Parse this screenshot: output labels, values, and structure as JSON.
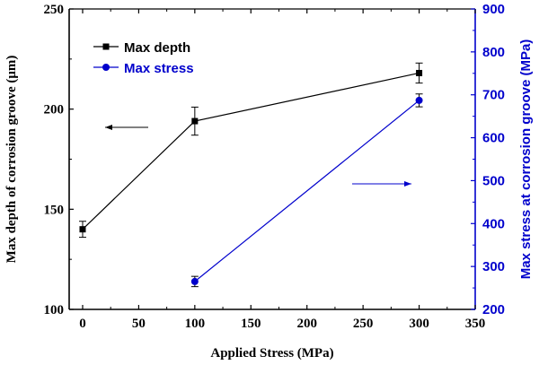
{
  "chart_data": {
    "type": "line",
    "xlabel": "Applied Stress (MPa)",
    "ylabel_left": "Max depth of corrosion groove (μm)",
    "ylabel_right": "Max stress at corrosion groove (MPa)",
    "xlim": [
      -12,
      350
    ],
    "ylim_left": [
      100,
      250
    ],
    "ylim_right": [
      200,
      900
    ],
    "x_ticks": [
      0,
      50,
      100,
      150,
      200,
      250,
      300,
      350
    ],
    "y_left_ticks": [
      100,
      150,
      200,
      250
    ],
    "y_right_ticks": [
      200,
      300,
      400,
      500,
      600,
      700,
      800,
      900
    ],
    "grid": false,
    "legend_position": "top-left",
    "series": [
      {
        "name": "Max depth",
        "axis": "left",
        "color": "#000000",
        "marker": "square",
        "x": [
          0,
          100,
          300
        ],
        "y": [
          140,
          194,
          218
        ],
        "error": [
          4,
          7,
          5
        ]
      },
      {
        "name": "Max stress",
        "axis": "right",
        "color": "#0000cc",
        "marker": "circle",
        "x": [
          100,
          300
        ],
        "y": [
          265,
          687
        ],
        "error": [
          12,
          15
        ]
      }
    ],
    "annotations": [
      {
        "type": "arrow",
        "direction": "left",
        "color": "#000000"
      },
      {
        "type": "arrow",
        "direction": "right",
        "color": "#0000cc"
      }
    ]
  }
}
